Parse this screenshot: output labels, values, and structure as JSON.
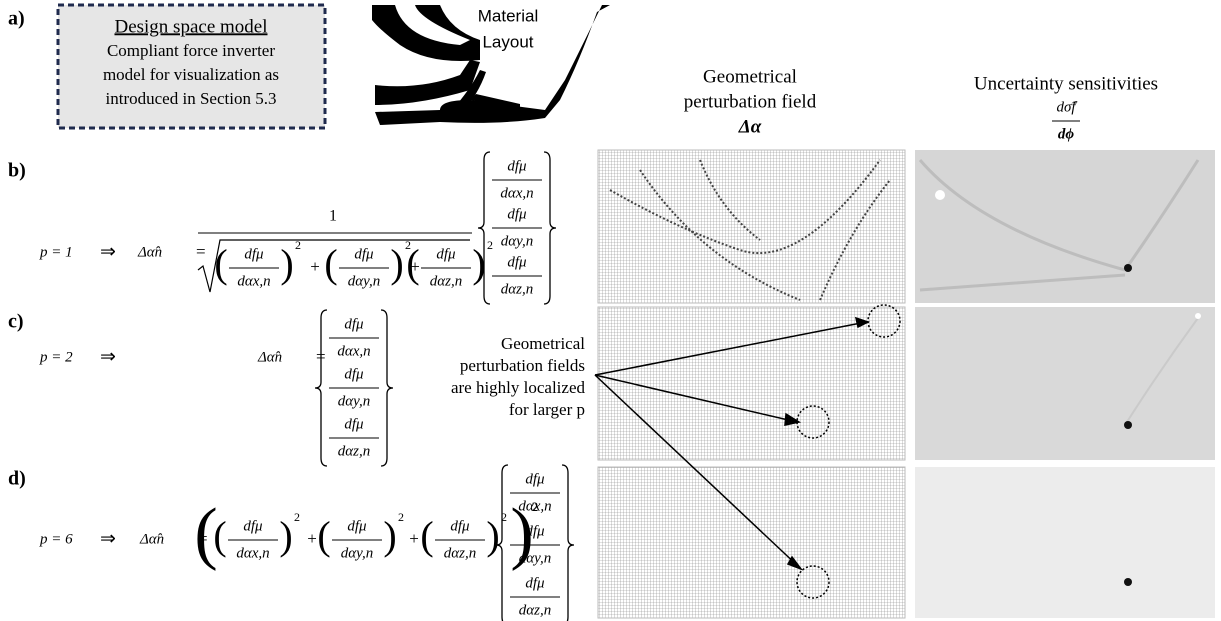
{
  "panels": {
    "a": "a)",
    "b": "b)",
    "c": "c)",
    "d": "d)"
  },
  "design_box": {
    "title": "Design space model",
    "lines": [
      "Compliant force inverter",
      "model for visualization as",
      "introduced in Section 5.3"
    ]
  },
  "material_layout": [
    "Material",
    "Layout"
  ],
  "columns": {
    "perturbation": {
      "title": [
        "Geometrical",
        "perturbation field"
      ],
      "symbol": "Δα"
    },
    "sensitivity": {
      "title": "Uncertainty sensitivities",
      "numerator": "dσ̃f",
      "denominator": "dϕ"
    }
  },
  "math": {
    "df": "dfμ",
    "dx": "dαx,n",
    "dy": "dαy,n",
    "dz": "dαz,n",
    "delta": "Δα̂n",
    "eq": "=",
    "one": "1",
    "implies": "⇒",
    "plus": "+",
    "square": "2",
    "lparen": "(",
    "rparen": ")"
  },
  "equations": [
    {
      "p": "p = 1"
    },
    {
      "p": "p = 2"
    },
    {
      "p": "p = 6"
    }
  ],
  "annotation": [
    "Geometrical",
    "perturbation fields",
    "are highly localized",
    "for larger p"
  ]
}
